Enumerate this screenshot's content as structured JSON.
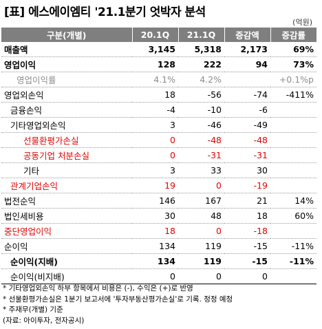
{
  "title": "[표] 에스에이엠티 '21.1분기 엇박자 분석",
  "unit": "(억원)",
  "columns": [
    "구분(개별)",
    "20.1Q",
    "21.1Q",
    "증감액",
    "증감률"
  ],
  "rows": [
    {
      "label": "매출액",
      "q20": "3,145",
      "q21": "5,318",
      "diff": "2,173",
      "rate": "69%"
    },
    {
      "label": "영업이익",
      "q20": "128",
      "q21": "222",
      "diff": "94",
      "rate": "73%"
    },
    {
      "label": "영업이익률",
      "q20": "4.1%",
      "q21": "4.2%",
      "diff": "",
      "rate": "+0.1%p"
    },
    {
      "label": "영업외손익",
      "q20": "18",
      "q21": "-56",
      "diff": "-74",
      "rate": "-411%"
    },
    {
      "label": "금융손익",
      "q20": "-4",
      "q21": "-10",
      "diff": "-6",
      "rate": ""
    },
    {
      "label": "기타영업외손익",
      "q20": "3",
      "q21": "-46",
      "diff": "-49",
      "rate": ""
    },
    {
      "label": "선물환평가손실",
      "q20": "0",
      "q21": "-48",
      "diff": "-48",
      "rate": ""
    },
    {
      "label": "공동기업 처분손실",
      "q20": "0",
      "q21": "-31",
      "diff": "-31",
      "rate": ""
    },
    {
      "label": "기타",
      "q20": "3",
      "q21": "33",
      "diff": "30",
      "rate": ""
    },
    {
      "label": "관계기업손익",
      "q20": "19",
      "q21": "0",
      "diff": "-19",
      "rate": ""
    },
    {
      "label": "법전순익",
      "q20": "146",
      "q21": "167",
      "diff": "21",
      "rate": "14%"
    },
    {
      "label": "법인세비용",
      "q20": "30",
      "q21": "48",
      "diff": "18",
      "rate": "60%"
    },
    {
      "label": "중단영업이익",
      "q20": "18",
      "q21": "0",
      "diff": "-18",
      "rate": ""
    },
    {
      "label": "순이익",
      "q20": "134",
      "q21": "119",
      "diff": "-15",
      "rate": "-11%"
    },
    {
      "label": "순이익(지배)",
      "q20": "134",
      "q21": "119",
      "diff": "-15",
      "rate": "-11%"
    },
    {
      "label": "순이익(비지배)",
      "q20": "0",
      "q21": "0",
      "diff": "0",
      "rate": ""
    }
  ],
  "notes": [
    "* 기타영업외손익 하부 항목에서 비용은 (-), 수익은 (+)로 반영",
    "* 선물환평가손실은 1분기 보고서에 '투자부동산평가손실'로 기록. 정정 예정",
    "* 주재무(개별) 기준",
    "(자료: 아이투자, 전자공시)"
  ],
  "colors": {
    "header_bg": "#7f7f7f",
    "red": "#e60000",
    "gray": "#8c8c8c"
  }
}
